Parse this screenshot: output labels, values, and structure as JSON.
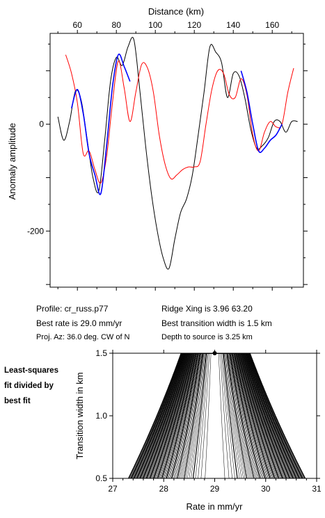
{
  "chart_data": [
    {
      "type": "line",
      "title": "",
      "xlabel": "Distance (km)",
      "ylabel": "Anomaly amplitude",
      "x_ticks": [
        "60",
        "80",
        "100",
        "120",
        "140",
        "160"
      ],
      "y_ticks": [
        "0",
        "-200"
      ],
      "xlim": [
        46,
        176
      ],
      "ylim": [
        -305,
        170
      ],
      "grid": false,
      "series": [
        {
          "color": "#000000",
          "x": [
            50,
            53,
            56,
            59,
            62,
            65,
            68,
            71,
            74,
            77,
            80,
            83,
            86,
            89,
            92,
            95,
            98,
            101,
            104,
            107,
            110,
            113,
            116,
            119,
            122,
            125,
            128,
            131,
            134,
            137,
            140,
            143,
            146,
            149,
            152,
            155,
            158,
            161,
            164,
            167,
            170,
            173
          ],
          "y": [
            14,
            -30,
            5,
            62,
            44,
            -28,
            -100,
            -125,
            -30,
            80,
            125,
            110,
            145,
            158,
            65,
            -40,
            -130,
            -200,
            -250,
            -270,
            -215,
            -165,
            -140,
            -95,
            -20,
            60,
            145,
            135,
            115,
            50,
            95,
            90,
            48,
            -10,
            -45,
            -40,
            -25,
            5,
            5,
            -15,
            5,
            5
          ]
        },
        {
          "color": "#ff0000",
          "x": [
            54,
            57,
            60,
            63,
            66,
            69,
            72,
            75,
            78,
            81,
            84,
            87,
            90,
            93,
            96,
            99,
            102,
            105,
            108,
            111,
            114,
            117,
            120,
            123,
            126,
            129,
            132,
            135,
            138,
            141,
            144,
            147,
            150,
            153,
            156,
            159,
            162,
            165,
            168,
            171
          ],
          "y": [
            130,
            95,
            40,
            -55,
            -50,
            -85,
            -110,
            -60,
            40,
            118,
            68,
            5,
            60,
            112,
            105,
            60,
            -20,
            -75,
            -102,
            -95,
            -85,
            -80,
            -80,
            -70,
            0,
            65,
            100,
            95,
            55,
            50,
            85,
            55,
            -20,
            -50,
            -15,
            5,
            -5,
            0,
            60,
            105
          ]
        },
        {
          "color": "#0000ff",
          "x": [
            57,
            60,
            63,
            66,
            69,
            72,
            75,
            78,
            81,
            84,
            87
          ],
          "y": [
            30,
            65,
            20,
            -55,
            -95,
            -130,
            -40,
            70,
            130,
            108,
            80
          ]
        },
        {
          "color": "#0000ff",
          "x": [
            144,
            147,
            150,
            153,
            156,
            159,
            162,
            165
          ],
          "y": [
            100,
            60,
            0,
            -50,
            -45,
            -30,
            -20,
            0
          ]
        }
      ]
    },
    {
      "type": "contour",
      "xlabel": "Rate in mm/yr",
      "ylabel": "Transition width in km",
      "x_ticks": [
        "27",
        "28",
        "29",
        "30",
        "31"
      ],
      "y_ticks": [
        "0.5",
        "1.0",
        "1.5"
      ],
      "xlim": [
        27,
        31
      ],
      "ylim": [
        0.5,
        1.5
      ],
      "best_fit_point": {
        "x": 29.0,
        "y": 1.5
      }
    }
  ],
  "info": {
    "profile": "Profile: cr_russ.p77",
    "best_rate": "Best rate is 29.0 mm/yr",
    "proj_az": "Proj. Az: 36.0 deg. CW of N",
    "ridge_xing": "Ridge Xing is 3.96 63.20",
    "best_width": "Best transition width is 1.5 km",
    "depth": "Depth to source is   3.25 km"
  },
  "side_note": [
    "Least-squares",
    "fit divided by",
    "best fit"
  ]
}
